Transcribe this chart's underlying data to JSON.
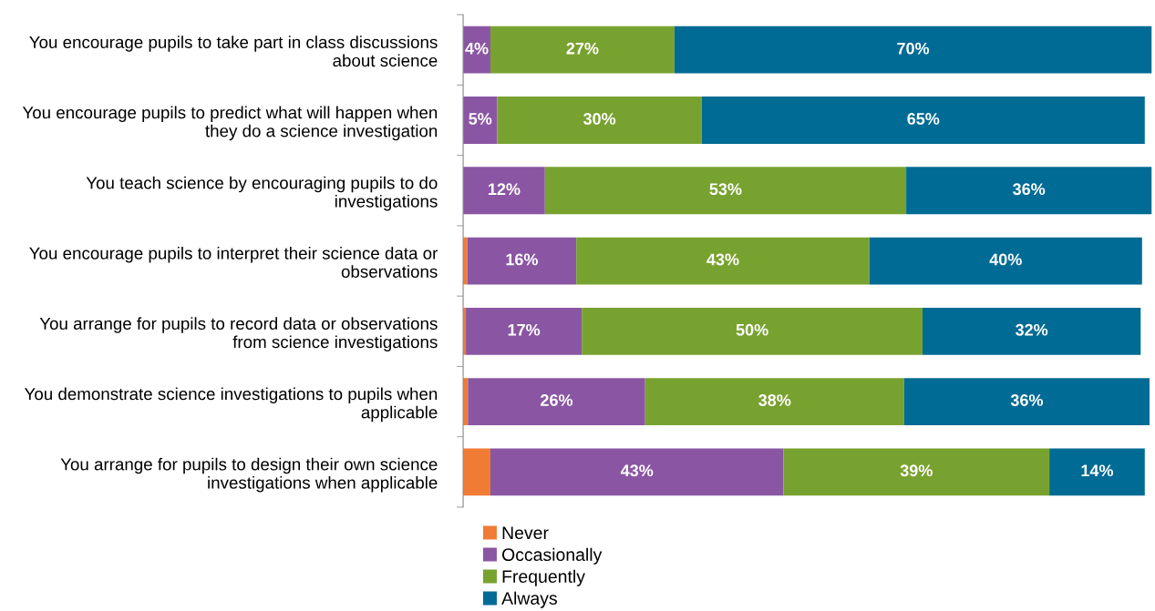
{
  "chart_data": {
    "type": "bar",
    "orientation": "horizontal",
    "stacked": true,
    "categories": [
      "You encourage pupils to take part in class discussions about science",
      "You encourage pupils to predict what will happen when they do a science investigation",
      "You teach science by encouraging pupils to do investigations",
      "You encourage pupils to interpret their science data or observations",
      "You arrange for pupils to record data or observations from science investigations",
      "You demonstrate science investigations to pupils when applicable",
      "You arrange for pupils to design their own science investigations when applicable"
    ],
    "series": [
      {
        "name": "Never",
        "color": "#f07b35",
        "values": [
          0,
          0,
          0,
          0.6,
          0.4,
          0.7,
          4
        ],
        "value_labels": [
          null,
          null,
          null,
          null,
          null,
          null,
          null
        ]
      },
      {
        "name": "Occasionally",
        "color": "#8a56a3",
        "values": [
          4,
          5,
          12,
          16,
          17,
          26,
          43
        ],
        "value_labels": [
          "4%",
          "5%",
          "12%",
          "16%",
          "17%",
          "26%",
          "43%"
        ]
      },
      {
        "name": "Frequently",
        "color": "#78a22f",
        "values": [
          27,
          30,
          53,
          43,
          50,
          38,
          39
        ],
        "value_labels": [
          "27%",
          "30%",
          "53%",
          "43%",
          "50%",
          "38%",
          "39%"
        ]
      },
      {
        "name": "Always",
        "color": "#006b94",
        "values": [
          70,
          65,
          36,
          40,
          32,
          36,
          14
        ],
        "value_labels": [
          "70%",
          "65%",
          "36%",
          "40%",
          "32%",
          "36%",
          "14%"
        ]
      }
    ],
    "xlim": [
      0,
      101.5
    ],
    "tick_labels": "y",
    "grid": false,
    "legend": "bottom"
  }
}
